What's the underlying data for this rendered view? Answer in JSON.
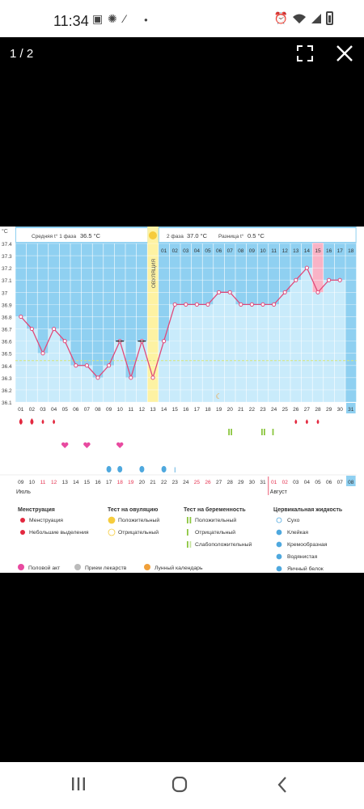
{
  "status_bar": {
    "time": "11:34",
    "icons_left": [
      "gallery-icon",
      "gear-icon",
      "magic-wand-icon",
      "dot-icon"
    ],
    "icons_right": [
      "alarm-icon",
      "wifi-icon",
      "signal-icon",
      "battery-icon"
    ]
  },
  "viewer": {
    "counter": "1 / 2",
    "fullscreen_icon": "fullscreen-icon",
    "close_icon": "close-icon"
  },
  "chart": {
    "unit": "°C",
    "phase1_label": "Средняя t° 1 фаза",
    "phase1_value": "36.5 °C",
    "ovulation_label": "ОВУЛЯЦИЯ",
    "phase2_label": "2 фаза",
    "phase2_value": "37.0 °C",
    "diff_label": "Разница t°",
    "diff_value": "0.5 °C",
    "y_ticks": [
      "37.4",
      "37.3",
      "37.2",
      "37.1",
      "37",
      "36.9",
      "36.8",
      "36.7",
      "36.6",
      "36.5",
      "36.4",
      "36.3",
      "36.2",
      "36.1"
    ],
    "cycle_days": [
      "01",
      "02",
      "03",
      "04",
      "05",
      "06",
      "07",
      "08",
      "09",
      "10",
      "11",
      "12",
      "13",
      "14",
      "15",
      "16",
      "17",
      "18",
      "19",
      "20",
      "21",
      "22",
      "23",
      "24",
      "25",
      "26",
      "27",
      "28",
      "29",
      "30",
      "31"
    ],
    "phase2_days": [
      "01",
      "02",
      "03",
      "04",
      "05",
      "06",
      "07",
      "08",
      "09",
      "10",
      "11",
      "12",
      "13",
      "14",
      "15",
      "16",
      "17",
      "18"
    ],
    "dates": [
      "09",
      "10",
      "11",
      "12",
      "13",
      "14",
      "15",
      "16",
      "17",
      "18",
      "19",
      "20",
      "21",
      "22",
      "23",
      "24",
      "25",
      "26",
      "27",
      "28",
      "29",
      "30",
      "31",
      "01",
      "02",
      "03",
      "04",
      "05",
      "06",
      "07",
      "08"
    ],
    "month_1": "Июль",
    "month_2": "Август",
    "legend": {
      "menstruation": {
        "title": "Менструация",
        "items": [
          "Менструация",
          "Небольшие выделения"
        ]
      },
      "ovulation_test": {
        "title": "Тест на овуляцию",
        "items": [
          "Положительный",
          "Отрицательный"
        ]
      },
      "pregnancy_test": {
        "title": "Тест на беременность",
        "items": [
          "Положительный",
          "Отрицательный",
          "Слабоположительный"
        ]
      },
      "cervical": {
        "title": "Цервикальная жидкость",
        "items": [
          "Сухо",
          "Клейкая",
          "Кремообразная",
          "Водянистая",
          "Яичный белок"
        ]
      },
      "bottom": [
        "Половой акт",
        "Прием лекарств",
        "Лунный календарь"
      ]
    },
    "colors": {
      "sky": "#8fd0f1",
      "bar": "#c9ebfb",
      "line": "#e0497a",
      "ovulation": "#fdf2a3",
      "highlight": "#f9b3c6",
      "grid": "#ffffff",
      "accent": "#1d94d1"
    }
  },
  "chart_data": {
    "type": "line",
    "title": "",
    "xlabel": "",
    "ylabel": "°C",
    "ylim": [
      36.1,
      37.4
    ],
    "x": [
      "01",
      "02",
      "03",
      "04",
      "05",
      "06",
      "07",
      "08",
      "09",
      "10",
      "11",
      "12",
      "13",
      "14",
      "15",
      "16",
      "17",
      "18",
      "19",
      "20",
      "21",
      "22",
      "23",
      "24",
      "25",
      "26",
      "27",
      "28",
      "29",
      "30"
    ],
    "series": [
      {
        "values": [
          36.8,
          36.7,
          36.5,
          36.7,
          36.6,
          36.4,
          36.4,
          36.3,
          36.4,
          36.6,
          36.3,
          36.6,
          36.3,
          36.6,
          36.9,
          36.9,
          36.9,
          36.9,
          37.0,
          37.0,
          36.9,
          36.9,
          36.9,
          36.9,
          37.0,
          37.1,
          37.2,
          37.0,
          37.1,
          37.1
        ]
      }
    ]
  },
  "nav": {
    "recent": "recent-apps-icon",
    "home": "home-icon",
    "back": "back-icon"
  }
}
